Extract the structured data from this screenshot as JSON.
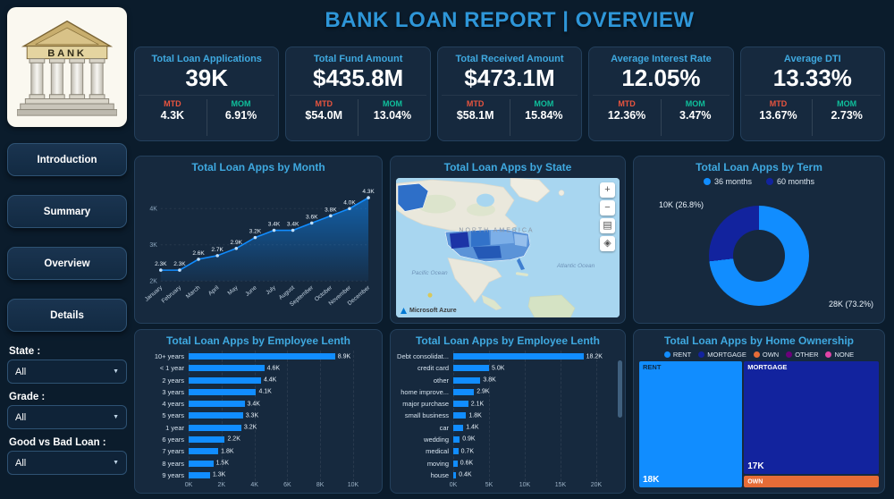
{
  "title": "BANK LOAN REPORT | OVERVIEW",
  "logo_text": "BANK",
  "sidebar": {
    "nav": [
      "Introduction",
      "Summary",
      "Overview",
      "Details"
    ],
    "filters": [
      {
        "label": "State :",
        "value": "All"
      },
      {
        "label": "Grade :",
        "value": "All"
      },
      {
        "label": "Good vs Bad Loan :",
        "value": "All"
      }
    ]
  },
  "kpi_labels": {
    "mtd": "MTD",
    "mom": "MOM"
  },
  "kpis": [
    {
      "title": "Total Loan Applications",
      "value": "39K",
      "mtd": "4.3K",
      "mom": "6.91%"
    },
    {
      "title": "Total Fund Amount",
      "value": "$435.8M",
      "mtd": "$54.0M",
      "mom": "13.04%"
    },
    {
      "title": "Total Received Amount",
      "value": "$473.1M",
      "mtd": "$58.1M",
      "mom": "15.84%"
    },
    {
      "title": "Average Interest Rate",
      "value": "12.05%",
      "mtd": "12.36%",
      "mom": "3.47%"
    },
    {
      "title": "Average DTI",
      "value": "13.33%",
      "mtd": "13.67%",
      "mom": "2.73%"
    }
  ],
  "map": {
    "region_label": "NORTH AMERICA",
    "ocean_left": "Pacific Ocean",
    "ocean_right": "Atlantic Ocean",
    "attribution": "Microsoft Azure",
    "controls": [
      {
        "name": "zoom-in",
        "glyph": "+"
      },
      {
        "name": "zoom-out",
        "glyph": "−"
      },
      {
        "name": "map-style",
        "glyph": "▤"
      },
      {
        "name": "locate",
        "glyph": "◈"
      }
    ]
  },
  "colors": {
    "accent_blue": "#118DFF",
    "navy": "#12239E",
    "orange": "#E66C37",
    "purple": "#6B007B",
    "pink": "#E044A7",
    "mtd_red": "#E8543F",
    "mom_green": "#0FBF9B",
    "title_blue": "#2E96D8"
  },
  "chart_data": [
    {
      "id": "loan_apps_by_month",
      "type": "area",
      "title": "Total Loan Apps by Month",
      "categories": [
        "January",
        "February",
        "March",
        "April",
        "May",
        "June",
        "July",
        "August",
        "September",
        "October",
        "November",
        "December"
      ],
      "values": [
        2.3,
        2.3,
        2.6,
        2.7,
        2.9,
        3.2,
        3.4,
        3.4,
        3.6,
        3.8,
        4.0,
        4.3
      ],
      "labels": [
        "2.3K",
        "2.3K",
        "2.6K",
        "2.7K",
        "2.9K",
        "3.2K",
        "3.4K",
        "3.4K",
        "3.6K",
        "3.8K",
        "4.0K",
        "4.3K"
      ],
      "xlabel": "",
      "ylabel": "",
      "ylim": [
        2,
        4.5
      ],
      "yticks": [
        {
          "v": 2,
          "label": "2K"
        },
        {
          "v": 3,
          "label": "3K"
        },
        {
          "v": 4,
          "label": "4K"
        }
      ]
    },
    {
      "id": "loan_apps_by_state",
      "type": "map",
      "title": "Total Loan Apps by State"
    },
    {
      "id": "loan_apps_by_term",
      "type": "donut",
      "title": "Total Loan Apps by Term",
      "slices": [
        {
          "name": "36 months",
          "value": 73.2,
          "label": "28K (73.2%)",
          "color": "#118DFF"
        },
        {
          "name": "60 months",
          "value": 26.8,
          "label": "10K (26.8%)",
          "color": "#12239E"
        }
      ]
    },
    {
      "id": "loan_apps_by_employee_length",
      "type": "bar",
      "title": "Total Loan Apps by Employee Lenth",
      "categories": [
        "10+ years",
        "< 1 year",
        "2 years",
        "3 years",
        "4 years",
        "5 years",
        "1 year",
        "6 years",
        "7 years",
        "8 years",
        "9 years"
      ],
      "values": [
        8.9,
        4.6,
        4.4,
        4.1,
        3.4,
        3.3,
        3.2,
        2.2,
        1.8,
        1.5,
        1.3
      ],
      "labels": [
        "8.9K",
        "4.6K",
        "4.4K",
        "4.1K",
        "3.4K",
        "3.3K",
        "3.2K",
        "2.2K",
        "1.8K",
        "1.5K",
        "1.3K"
      ],
      "xlim": [
        0,
        10
      ],
      "xticks": [
        {
          "v": 0,
          "label": "0K"
        },
        {
          "v": 2,
          "label": "2K"
        },
        {
          "v": 4,
          "label": "4K"
        },
        {
          "v": 6,
          "label": "6K"
        },
        {
          "v": 8,
          "label": "8K"
        },
        {
          "v": 10,
          "label": "10K"
        }
      ]
    },
    {
      "id": "loan_apps_by_purpose",
      "type": "bar",
      "title": "Total Loan Apps by Employee Lenth",
      "categories": [
        "Debt consolidat...",
        "credit card",
        "other",
        "home improve...",
        "major purchase",
        "small business",
        "car",
        "wedding",
        "medical",
        "moving",
        "house"
      ],
      "values": [
        18.2,
        5.0,
        3.8,
        2.9,
        2.1,
        1.8,
        1.4,
        0.9,
        0.7,
        0.6,
        0.4
      ],
      "labels": [
        "18.2K",
        "5.0K",
        "3.8K",
        "2.9K",
        "2.1K",
        "1.8K",
        "1.4K",
        "0.9K",
        "0.7K",
        "0.6K",
        "0.4K"
      ],
      "xlim": [
        0,
        20
      ],
      "xticks": [
        {
          "v": 0,
          "label": "0K"
        },
        {
          "v": 5,
          "label": "5K"
        },
        {
          "v": 10,
          "label": "10K"
        },
        {
          "v": 15,
          "label": "15K"
        },
        {
          "v": 20,
          "label": "20K"
        }
      ]
    },
    {
      "id": "loan_apps_by_home_ownership",
      "type": "treemap",
      "title": "Total Loan Apps by Home Ownership",
      "legend": [
        {
          "name": "RENT",
          "color": "#118DFF"
        },
        {
          "name": "MORTGAGE",
          "color": "#12239E"
        },
        {
          "name": "OWN",
          "color": "#E66C37"
        },
        {
          "name": "OTHER",
          "color": "#6B007B"
        },
        {
          "name": "NONE",
          "color": "#E044A7"
        }
      ],
      "blocks": [
        {
          "name": "RENT",
          "value": "18K",
          "color": "#118DFF"
        },
        {
          "name": "MORTGAGE",
          "value": "17K",
          "color": "#12239E"
        },
        {
          "name": "OWN",
          "value": "",
          "color": "#E66C37"
        }
      ]
    }
  ]
}
